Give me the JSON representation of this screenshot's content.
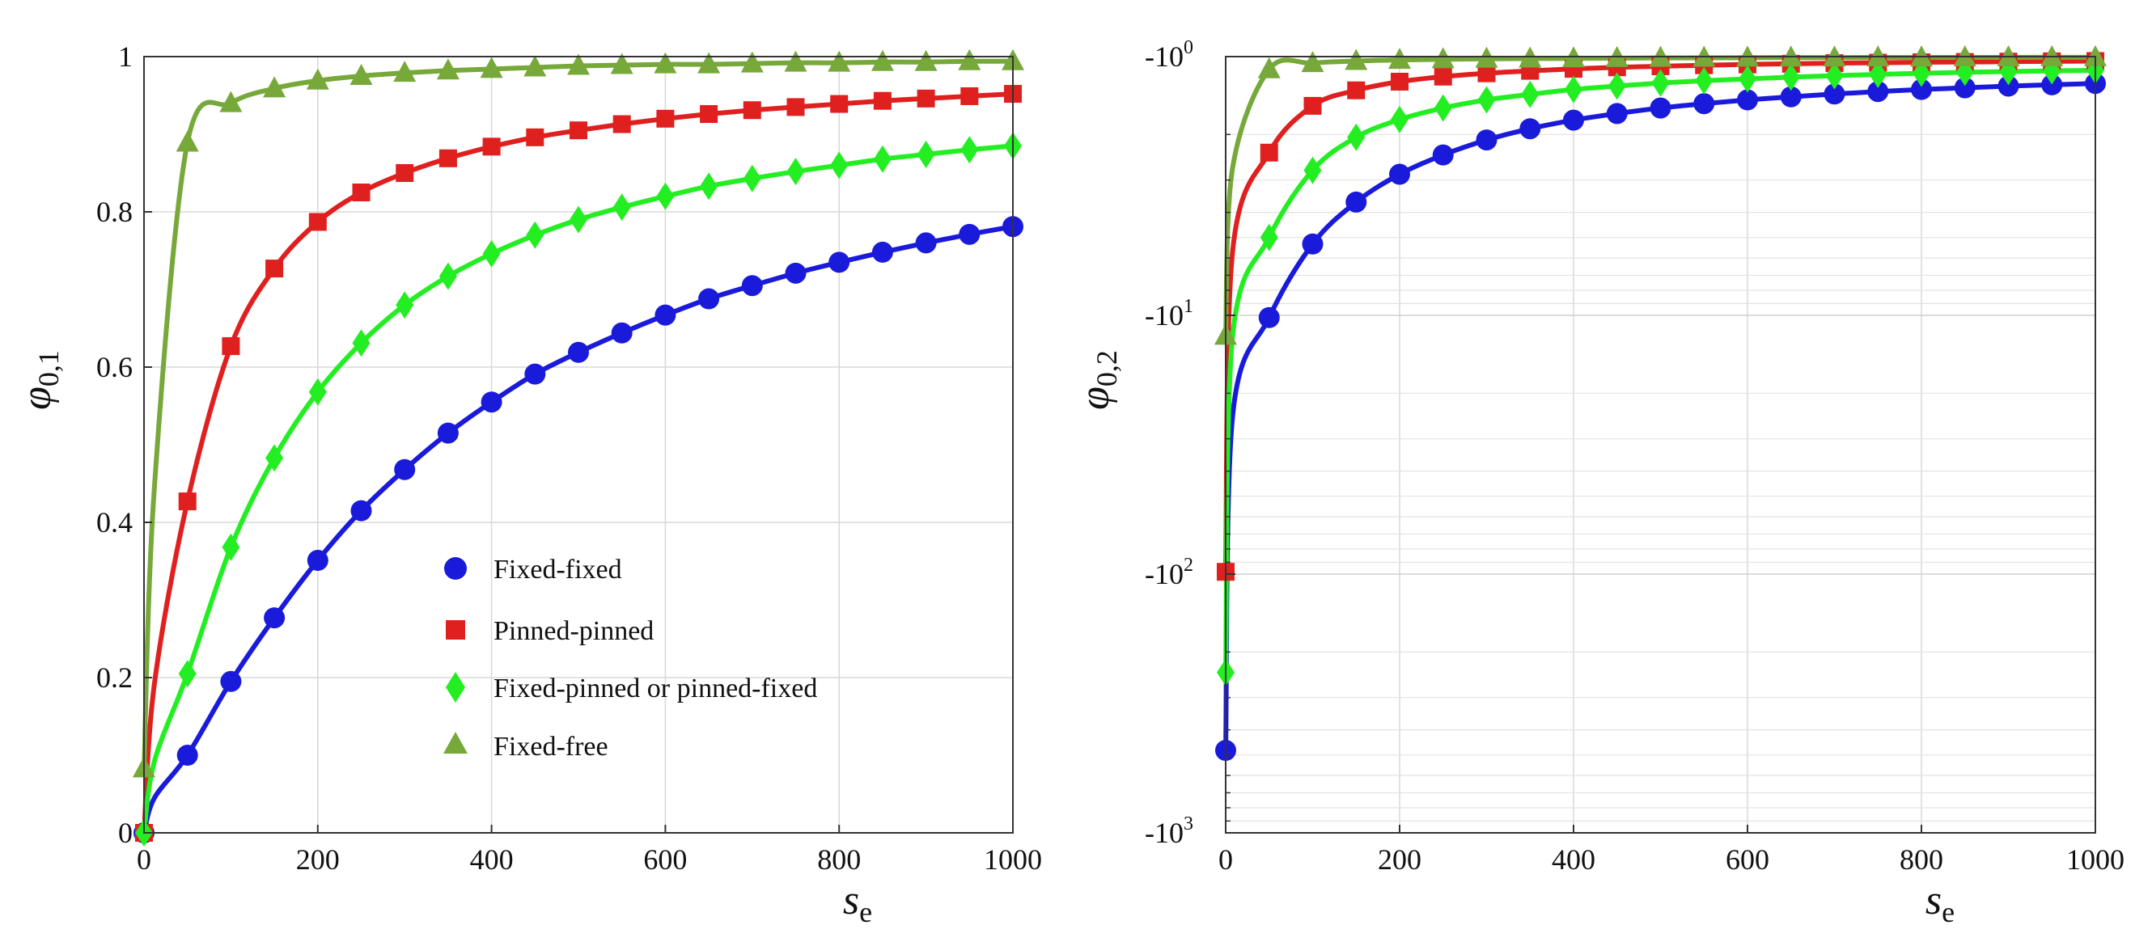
{
  "colors": {
    "fixed_fixed": "#1a1adb",
    "pinned_pinned": "#e01f1f",
    "fixed_pinned": "#22ee22",
    "fixed_free": "#77a83a"
  },
  "chart_data": [
    {
      "type": "line",
      "title": "",
      "xlabel_main": "s",
      "xlabel_sub": "e",
      "ylabel_main": "φ",
      "ylabel_sub": "0,1",
      "xlim": [
        0,
        1000
      ],
      "ylim": [
        0,
        1
      ],
      "yscale": "linear",
      "grid": true,
      "legend_position": "lower-right",
      "xticks": [
        0,
        200,
        400,
        600,
        800,
        1000
      ],
      "xtick_labels": [
        "0",
        "200",
        "400",
        "600",
        "800",
        "1000"
      ],
      "yticks": [
        0,
        0.2,
        0.4,
        0.6,
        0.8,
        1
      ],
      "ytick_labels": [
        "0",
        "0.2",
        "0.4",
        "0.6",
        "0.8",
        "1"
      ],
      "x": [
        0,
        50,
        100,
        150,
        200,
        250,
        300,
        350,
        400,
        450,
        500,
        550,
        600,
        650,
        700,
        750,
        800,
        850,
        900,
        950,
        1000
      ],
      "series": [
        {
          "name": "Fixed-fixed",
          "marker": "circle",
          "color_key": "fixed_fixed",
          "values": [
            0,
            0.1,
            0.195,
            0.277,
            0.351,
            0.415,
            0.468,
            0.515,
            0.555,
            0.591,
            0.619,
            0.644,
            0.667,
            0.688,
            0.705,
            0.721,
            0.735,
            0.748,
            0.76,
            0.771,
            0.781
          ]
        },
        {
          "name": "Pinned-pinned",
          "marker": "square",
          "color_key": "pinned_pinned",
          "values": [
            0,
            0.427,
            0.627,
            0.727,
            0.787,
            0.825,
            0.85,
            0.869,
            0.884,
            0.896,
            0.905,
            0.913,
            0.92,
            0.926,
            0.931,
            0.935,
            0.939,
            0.943,
            0.946,
            0.949,
            0.952
          ]
        },
        {
          "name": "Fixed-pinned or pinned-fixed",
          "marker": "diamond",
          "color_key": "fixed_pinned",
          "values": [
            0,
            0.205,
            0.368,
            0.483,
            0.568,
            0.631,
            0.68,
            0.717,
            0.746,
            0.77,
            0.79,
            0.806,
            0.82,
            0.833,
            0.843,
            0.852,
            0.86,
            0.868,
            0.874,
            0.88,
            0.885
          ]
        },
        {
          "name": "Fixed-free",
          "marker": "triangle",
          "color_key": "fixed_free",
          "values": [
            0.083,
            0.889,
            0.94,
            0.959,
            0.969,
            0.975,
            0.979,
            0.982,
            0.984,
            0.986,
            0.988,
            0.989,
            0.99,
            0.99,
            0.991,
            0.992,
            0.992,
            0.993,
            0.993,
            0.994,
            0.994
          ]
        }
      ]
    },
    {
      "type": "line",
      "title": "",
      "xlabel_main": "s",
      "xlabel_sub": "e",
      "ylabel_main": "φ",
      "ylabel_sub": "0,2",
      "xlim": [
        0,
        1000
      ],
      "ylim": [
        -1000,
        -1
      ],
      "yscale": "log (negative, magnitude increasing downward)",
      "grid": true,
      "xticks": [
        0,
        200,
        400,
        600,
        800,
        1000
      ],
      "xtick_labels": [
        "0",
        "200",
        "400",
        "600",
        "800",
        "1000"
      ],
      "yticks": [
        -1,
        -10,
        -100,
        -1000
      ],
      "ytick_labels": [
        {
          "base": "-10",
          "exp": "0"
        },
        {
          "base": "-10",
          "exp": "1"
        },
        {
          "base": "-10",
          "exp": "2"
        },
        {
          "base": "-10",
          "exp": "3"
        }
      ],
      "x": [
        0,
        50,
        100,
        150,
        200,
        250,
        300,
        350,
        400,
        450,
        500,
        550,
        600,
        650,
        700,
        750,
        800,
        850,
        900,
        950,
        1000
      ],
      "series": [
        {
          "name": "Fixed-fixed",
          "marker": "circle",
          "color_key": "fixed_fixed",
          "values": [
            -480,
            -10.2,
            -5.3,
            -3.65,
            -2.85,
            -2.4,
            -2.1,
            -1.9,
            -1.76,
            -1.66,
            -1.58,
            -1.52,
            -1.47,
            -1.43,
            -1.395,
            -1.365,
            -1.34,
            -1.32,
            -1.3,
            -1.285,
            -1.27
          ]
        },
        {
          "name": "Pinned-pinned",
          "marker": "square",
          "color_key": "pinned_pinned",
          "values": [
            -98,
            -2.35,
            -1.55,
            -1.35,
            -1.25,
            -1.195,
            -1.16,
            -1.135,
            -1.115,
            -1.1,
            -1.09,
            -1.08,
            -1.072,
            -1.066,
            -1.06,
            -1.056,
            -1.052,
            -1.049,
            -1.046,
            -1.043,
            -1.04
          ]
        },
        {
          "name": "Fixed-pinned or pinned-fixed",
          "marker": "diamond",
          "color_key": "fixed_pinned",
          "values": [
            -240,
            -5.0,
            -2.75,
            -2.05,
            -1.75,
            -1.58,
            -1.47,
            -1.4,
            -1.34,
            -1.3,
            -1.265,
            -1.24,
            -1.22,
            -1.2,
            -1.185,
            -1.172,
            -1.16,
            -1.15,
            -1.142,
            -1.135,
            -1.13
          ]
        },
        {
          "name": "Fixed-free",
          "marker": "triangle",
          "color_key": "fixed_free",
          "values": [
            -12,
            -1.12,
            -1.06,
            -1.04,
            -1.03,
            -1.025,
            -1.02,
            -1.018,
            -1.016,
            -1.014,
            -1.012,
            -1.011,
            -1.01,
            -1.009,
            -1.009,
            -1.008,
            -1.008,
            -1.007,
            -1.007,
            -1.006,
            -1.006
          ]
        }
      ]
    }
  ]
}
